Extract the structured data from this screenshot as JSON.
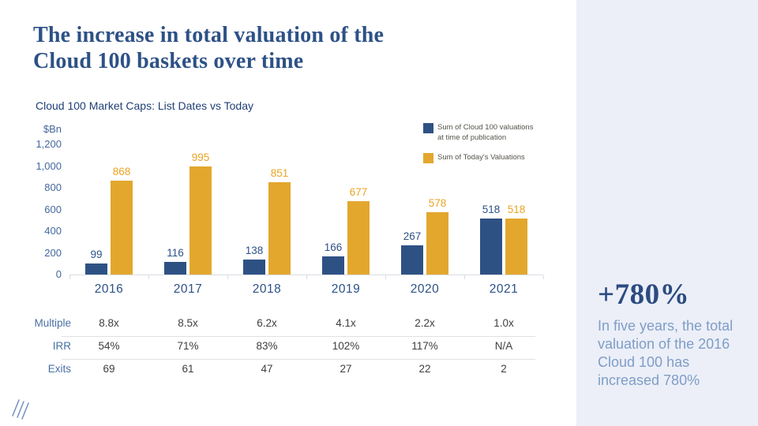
{
  "slide": {
    "title_lines": [
      "The increase in total valuation of the",
      "Cloud 100 baskets over time"
    ]
  },
  "chart_data": {
    "type": "bar",
    "title": "Cloud 100 Market Caps: List Dates vs Today",
    "unit_label": "$Bn",
    "categories": [
      "2016",
      "2017",
      "2018",
      "2019",
      "2020",
      "2021"
    ],
    "series": [
      {
        "name": "Sum of Cloud 100 valuations at time of publication",
        "color": "#2E5184",
        "label_color": "#2D5186",
        "values": [
          99,
          116,
          138,
          166,
          267,
          518
        ]
      },
      {
        "name": "Sum of Today's Valuations",
        "color": "#E3A72E",
        "label_color": "#E8A424",
        "values": [
          868,
          995,
          851,
          677,
          578,
          518
        ]
      }
    ],
    "legend": [
      {
        "lines": [
          "Sum of Cloud 100 valuations",
          "at time of publication"
        ]
      },
      {
        "lines": [
          "Sum of Today's Valuations"
        ]
      }
    ],
    "legend_position": "top-right",
    "grid": false,
    "ylim": [
      0,
      1200
    ],
    "y_ticks": [
      {
        "label": "1,200",
        "value": 1200
      },
      {
        "label": "1,000",
        "value": 1000
      },
      {
        "label": "800",
        "value": 800
      },
      {
        "label": "600",
        "value": 600
      },
      {
        "label": "400",
        "value": 400
      },
      {
        "label": "200",
        "value": 200
      },
      {
        "label": "0",
        "value": 0
      }
    ]
  },
  "stats_table": {
    "rows": [
      {
        "label": "Multiple",
        "values": [
          "8.8x",
          "8.5x",
          "6.2x",
          "4.1x",
          "2.2x",
          "1.0x"
        ]
      },
      {
        "label": "IRR",
        "values": [
          "54%",
          "71%",
          "83%",
          "102%",
          "117%",
          "N/A"
        ]
      },
      {
        "label": "Exits",
        "values": [
          "69",
          "61",
          "47",
          "27",
          "22",
          "2"
        ]
      }
    ]
  },
  "sidebar": {
    "headline": "+780%",
    "body": "In five years, the total valuation of the 2016 Cloud 100 has increased 780%",
    "background": "#ECEFF8"
  },
  "colors": {
    "title_navy": "#2D5186",
    "bar_blue": "#2E5184",
    "bar_gold": "#E3A72E",
    "axis_label_blue": "#44689D",
    "panel_bg": "#ECEFF8",
    "panel_body_text": "#7F9DC6",
    "logo_blue": "#7390C1"
  }
}
